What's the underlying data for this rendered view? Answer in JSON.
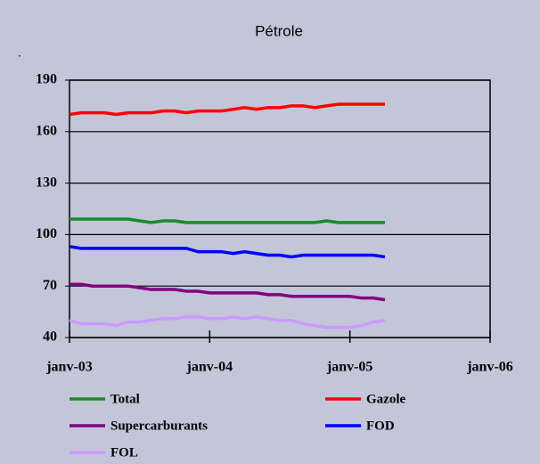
{
  "chart_data": {
    "type": "line",
    "title": "Pétrole",
    "annotations": [
      "."
    ],
    "x": [
      "2003-01",
      "2003-02",
      "2003-03",
      "2003-04",
      "2003-05",
      "2003-06",
      "2003-07",
      "2003-08",
      "2003-09",
      "2003-10",
      "2003-11",
      "2003-12",
      "2004-01",
      "2004-02",
      "2004-03",
      "2004-04",
      "2004-05",
      "2004-06",
      "2004-07",
      "2004-08",
      "2004-09",
      "2004-10",
      "2004-11",
      "2004-12",
      "2005-01",
      "2005-02",
      "2005-03",
      "2005-04"
    ],
    "series": [
      {
        "name": "Total",
        "color": "#1a8a2a",
        "values": [
          109,
          109,
          109,
          109,
          109,
          109,
          108,
          107,
          108,
          108,
          107,
          107,
          107,
          107,
          107,
          107,
          107,
          107,
          107,
          107,
          107,
          107,
          108,
          107,
          107,
          107,
          107,
          107
        ]
      },
      {
        "name": "Gazole",
        "color": "#ff0000",
        "values": [
          170,
          171,
          171,
          171,
          170,
          171,
          171,
          171,
          172,
          172,
          171,
          172,
          172,
          172,
          173,
          174,
          173,
          174,
          174,
          175,
          175,
          174,
          175,
          176,
          176,
          176,
          176,
          176
        ]
      },
      {
        "name": "Supercarburants",
        "color": "#800080",
        "values": [
          71,
          71,
          70,
          70,
          70,
          70,
          69,
          68,
          68,
          68,
          67,
          67,
          66,
          66,
          66,
          66,
          66,
          65,
          65,
          64,
          64,
          64,
          64,
          64,
          64,
          63,
          63,
          62
        ]
      },
      {
        "name": "FOD",
        "color": "#0000ff",
        "values": [
          93,
          92,
          92,
          92,
          92,
          92,
          92,
          92,
          92,
          92,
          92,
          90,
          90,
          90,
          89,
          90,
          89,
          88,
          88,
          87,
          88,
          88,
          88,
          88,
          88,
          88,
          88,
          87
        ]
      },
      {
        "name": "FOL",
        "color": "#cc99ff",
        "values": [
          50,
          48,
          48,
          48,
          47,
          49,
          49,
          50,
          51,
          51,
          52,
          52,
          51,
          51,
          52,
          51,
          52,
          51,
          50,
          50,
          48,
          47,
          46,
          46,
          46,
          47,
          49,
          50
        ]
      }
    ],
    "ylim": [
      40,
      190
    ],
    "yticks": [
      40,
      70,
      100,
      130,
      160,
      190
    ],
    "xlim": [
      "2003-01",
      "2006-01"
    ],
    "xticks": [
      {
        "value": "2003-01",
        "label": "janv-03"
      },
      {
        "value": "2004-01",
        "label": "janv-04"
      },
      {
        "value": "2005-01",
        "label": "janv-05"
      },
      {
        "value": "2006-01",
        "label": "janv-06"
      }
    ],
    "grid": true
  }
}
